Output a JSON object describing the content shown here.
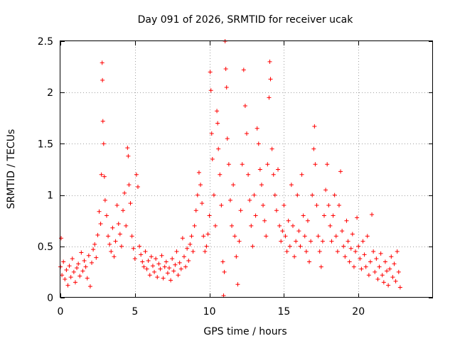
{
  "chart_data": {
    "type": "scatter",
    "title": "Day 091 of 2026, SRMTID for receiver ucak",
    "xlabel": "GPS time / hours",
    "ylabel": "SRMTID / TECUs",
    "xlim": [
      0,
      25
    ],
    "ylim": [
      0,
      2.5
    ],
    "xticks": [
      0,
      5,
      10,
      15,
      20
    ],
    "xtick_labels": [
      "0",
      "5",
      "10",
      "15",
      "20"
    ],
    "yticks": [
      0,
      0.5,
      1,
      1.5,
      2,
      2.5
    ],
    "ytick_labels": [
      "0",
      "0.5",
      "1",
      "1.5",
      "2",
      "2.5"
    ],
    "grid": true,
    "marker": "+",
    "series": [
      {
        "name": "SRMTID",
        "color": "#ff0000",
        "points": [
          [
            0.0,
            0.3
          ],
          [
            0.05,
            0.58
          ],
          [
            0.1,
            0.22
          ],
          [
            0.2,
            0.35
          ],
          [
            0.3,
            0.18
          ],
          [
            0.4,
            0.27
          ],
          [
            0.5,
            0.12
          ],
          [
            0.6,
            0.31
          ],
          [
            0.7,
            0.2
          ],
          [
            0.8,
            0.38
          ],
          [
            0.9,
            0.25
          ],
          [
            1.0,
            0.15
          ],
          [
            1.1,
            0.29
          ],
          [
            1.2,
            0.33
          ],
          [
            1.3,
            0.21
          ],
          [
            1.4,
            0.44
          ],
          [
            1.5,
            0.26
          ],
          [
            1.6,
            0.36
          ],
          [
            1.7,
            0.3
          ],
          [
            1.8,
            0.19
          ],
          [
            1.9,
            0.41
          ],
          [
            2.0,
            0.11
          ],
          [
            2.1,
            0.34
          ],
          [
            2.2,
            0.47
          ],
          [
            2.3,
            0.52
          ],
          [
            2.4,
            0.39
          ],
          [
            2.5,
            0.61
          ],
          [
            2.6,
            0.84
          ],
          [
            2.7,
            0.72
          ],
          [
            2.75,
            1.2
          ],
          [
            2.8,
            2.29
          ],
          [
            2.82,
            2.12
          ],
          [
            2.85,
            1.72
          ],
          [
            2.9,
            1.5
          ],
          [
            2.95,
            1.18
          ],
          [
            3.0,
            0.95
          ],
          [
            3.1,
            0.8
          ],
          [
            3.2,
            0.6
          ],
          [
            3.3,
            0.52
          ],
          [
            3.4,
            0.45
          ],
          [
            3.5,
            0.68
          ],
          [
            3.6,
            0.4
          ],
          [
            3.7,
            0.55
          ],
          [
            3.8,
            0.9
          ],
          [
            3.9,
            0.72
          ],
          [
            4.0,
            0.62
          ],
          [
            4.1,
            0.5
          ],
          [
            4.2,
            0.85
          ],
          [
            4.3,
            1.02
          ],
          [
            4.4,
            0.7
          ],
          [
            4.5,
            1.46
          ],
          [
            4.55,
            1.38
          ],
          [
            4.6,
            1.1
          ],
          [
            4.7,
            0.92
          ],
          [
            4.8,
            0.6
          ],
          [
            4.9,
            0.48
          ],
          [
            5.0,
            0.38
          ],
          [
            5.1,
            1.2
          ],
          [
            5.2,
            1.08
          ],
          [
            5.3,
            0.5
          ],
          [
            5.4,
            0.42
          ],
          [
            5.5,
            0.35
          ],
          [
            5.6,
            0.3
          ],
          [
            5.7,
            0.45
          ],
          [
            5.8,
            0.28
          ],
          [
            5.9,
            0.36
          ],
          [
            6.0,
            0.22
          ],
          [
            6.1,
            0.4
          ],
          [
            6.2,
            0.31
          ],
          [
            6.3,
            0.25
          ],
          [
            6.4,
            0.38
          ],
          [
            6.5,
            0.2
          ],
          [
            6.6,
            0.33
          ],
          [
            6.7,
            0.28
          ],
          [
            6.8,
            0.41
          ],
          [
            6.9,
            0.19
          ],
          [
            7.0,
            0.3
          ],
          [
            7.1,
            0.35
          ],
          [
            7.2,
            0.24
          ],
          [
            7.3,
            0.29
          ],
          [
            7.4,
            0.17
          ],
          [
            7.5,
            0.38
          ],
          [
            7.6,
            0.26
          ],
          [
            7.7,
            0.32
          ],
          [
            7.8,
            0.45
          ],
          [
            7.9,
            0.22
          ],
          [
            8.0,
            0.34
          ],
          [
            8.1,
            0.28
          ],
          [
            8.2,
            0.58
          ],
          [
            8.3,
            0.4
          ],
          [
            8.4,
            0.3
          ],
          [
            8.5,
            0.48
          ],
          [
            8.6,
            0.36
          ],
          [
            8.7,
            0.52
          ],
          [
            8.8,
            0.6
          ],
          [
            8.9,
            0.45
          ],
          [
            9.0,
            0.7
          ],
          [
            9.1,
            0.85
          ],
          [
            9.2,
            1.0
          ],
          [
            9.3,
            1.22
          ],
          [
            9.4,
            1.1
          ],
          [
            9.5,
            0.92
          ],
          [
            9.6,
            0.6
          ],
          [
            9.7,
            0.45
          ],
          [
            9.8,
            0.5
          ],
          [
            9.9,
            0.62
          ],
          [
            10.0,
            0.8
          ],
          [
            10.05,
            2.2
          ],
          [
            10.1,
            2.02
          ],
          [
            10.15,
            1.6
          ],
          [
            10.2,
            1.35
          ],
          [
            10.3,
            1.0
          ],
          [
            10.4,
            0.7
          ],
          [
            10.5,
            1.82
          ],
          [
            10.55,
            1.7
          ],
          [
            10.6,
            1.45
          ],
          [
            10.7,
            1.2
          ],
          [
            10.8,
            0.9
          ],
          [
            10.9,
            0.35
          ],
          [
            10.95,
            0.02
          ],
          [
            11.0,
            0.25
          ],
          [
            11.05,
            2.5
          ],
          [
            11.1,
            2.23
          ],
          [
            11.15,
            2.05
          ],
          [
            11.2,
            1.55
          ],
          [
            11.3,
            1.3
          ],
          [
            11.4,
            0.95
          ],
          [
            11.5,
            0.7
          ],
          [
            11.6,
            1.1
          ],
          [
            11.7,
            0.6
          ],
          [
            11.8,
            0.4
          ],
          [
            11.9,
            0.13
          ],
          [
            12.0,
            0.55
          ],
          [
            12.1,
            0.85
          ],
          [
            12.2,
            1.3
          ],
          [
            12.3,
            2.22
          ],
          [
            12.4,
            1.87
          ],
          [
            12.5,
            1.6
          ],
          [
            12.6,
            1.2
          ],
          [
            12.7,
            0.95
          ],
          [
            12.8,
            0.7
          ],
          [
            12.9,
            0.5
          ],
          [
            13.0,
            1.0
          ],
          [
            13.1,
            0.8
          ],
          [
            13.2,
            1.65
          ],
          [
            13.3,
            1.5
          ],
          [
            13.4,
            1.25
          ],
          [
            13.5,
            1.1
          ],
          [
            13.6,
            0.9
          ],
          [
            13.7,
            0.75
          ],
          [
            13.8,
            0.6
          ],
          [
            13.9,
            1.3
          ],
          [
            14.0,
            1.95
          ],
          [
            14.05,
            2.3
          ],
          [
            14.1,
            2.13
          ],
          [
            14.2,
            1.45
          ],
          [
            14.3,
            1.2
          ],
          [
            14.4,
            1.0
          ],
          [
            14.5,
            0.85
          ],
          [
            14.6,
            1.25
          ],
          [
            14.7,
            0.7
          ],
          [
            14.8,
            0.55
          ],
          [
            14.9,
            0.65
          ],
          [
            15.0,
            0.9
          ],
          [
            15.1,
            0.6
          ],
          [
            15.2,
            0.45
          ],
          [
            15.3,
            0.75
          ],
          [
            15.4,
            0.5
          ],
          [
            15.5,
            1.1
          ],
          [
            15.6,
            0.7
          ],
          [
            15.7,
            0.4
          ],
          [
            15.8,
            0.55
          ],
          [
            15.9,
            1.0
          ],
          [
            16.0,
            0.65
          ],
          [
            16.1,
            0.5
          ],
          [
            16.2,
            1.2
          ],
          [
            16.3,
            0.8
          ],
          [
            16.4,
            0.6
          ],
          [
            16.5,
            0.45
          ],
          [
            16.6,
            0.75
          ],
          [
            16.7,
            0.35
          ],
          [
            16.8,
            0.55
          ],
          [
            16.9,
            1.0
          ],
          [
            17.0,
            1.45
          ],
          [
            17.05,
            1.67
          ],
          [
            17.1,
            1.3
          ],
          [
            17.2,
            0.9
          ],
          [
            17.3,
            0.6
          ],
          [
            17.4,
            0.45
          ],
          [
            17.5,
            0.3
          ],
          [
            17.6,
            0.55
          ],
          [
            17.7,
            0.8
          ],
          [
            17.8,
            1.05
          ],
          [
            17.9,
            1.3
          ],
          [
            18.0,
            0.9
          ],
          [
            18.1,
            0.7
          ],
          [
            18.2,
            0.55
          ],
          [
            18.3,
            0.8
          ],
          [
            18.4,
            1.0
          ],
          [
            18.5,
            0.6
          ],
          [
            18.6,
            0.45
          ],
          [
            18.7,
            0.9
          ],
          [
            18.8,
            1.23
          ],
          [
            18.9,
            0.65
          ],
          [
            19.0,
            0.5
          ],
          [
            19.1,
            0.4
          ],
          [
            19.2,
            0.75
          ],
          [
            19.3,
            0.55
          ],
          [
            19.4,
            0.35
          ],
          [
            19.5,
            0.48
          ],
          [
            19.6,
            0.62
          ],
          [
            19.7,
            0.3
          ],
          [
            19.8,
            0.45
          ],
          [
            19.9,
            0.78
          ],
          [
            20.0,
            0.5
          ],
          [
            20.1,
            0.38
          ],
          [
            20.2,
            0.28
          ],
          [
            20.3,
            0.55
          ],
          [
            20.4,
            0.42
          ],
          [
            20.5,
            0.3
          ],
          [
            20.6,
            0.6
          ],
          [
            20.7,
            0.22
          ],
          [
            20.8,
            0.35
          ],
          [
            20.9,
            0.81
          ],
          [
            21.0,
            0.45
          ],
          [
            21.1,
            0.25
          ],
          [
            21.2,
            0.38
          ],
          [
            21.3,
            0.18
          ],
          [
            21.4,
            0.3
          ],
          [
            21.5,
            0.43
          ],
          [
            21.6,
            0.22
          ],
          [
            21.7,
            0.15
          ],
          [
            21.8,
            0.35
          ],
          [
            21.9,
            0.26
          ],
          [
            22.0,
            0.12
          ],
          [
            22.1,
            0.28
          ],
          [
            22.2,
            0.4
          ],
          [
            22.3,
            0.2
          ],
          [
            22.4,
            0.33
          ],
          [
            22.5,
            0.16
          ],
          [
            22.6,
            0.45
          ],
          [
            22.7,
            0.25
          ],
          [
            22.8,
            0.1
          ]
        ]
      }
    ]
  }
}
